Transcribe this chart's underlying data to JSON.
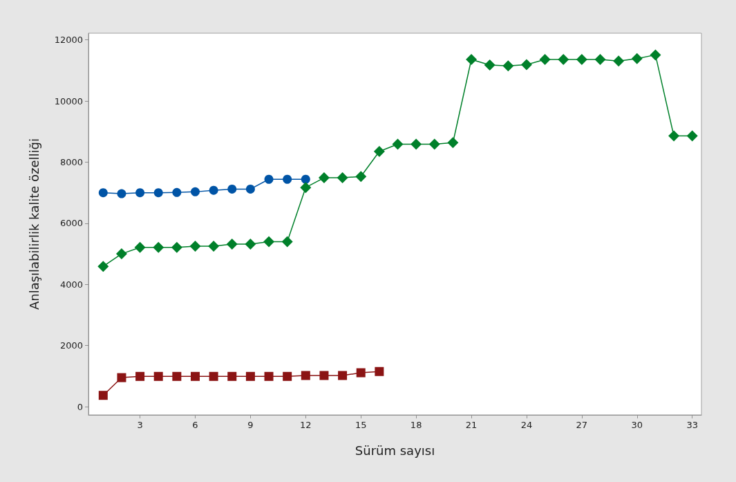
{
  "chart_data": {
    "type": "line",
    "xlabel": "Sürüm sayısı",
    "ylabel": "Anlaşılabilirlik kalite özelliği",
    "x": [
      1,
      2,
      3,
      4,
      5,
      6,
      7,
      8,
      9,
      10,
      11,
      12,
      13,
      14,
      15,
      16,
      17,
      18,
      19,
      20,
      21,
      22,
      23,
      24,
      25,
      26,
      27,
      28,
      29,
      30,
      31,
      32,
      33
    ],
    "xlim": [
      0.2,
      33.5
    ],
    "xticks": [
      3,
      6,
      9,
      12,
      15,
      18,
      21,
      24,
      27,
      30,
      33
    ],
    "ylim": [
      -270,
      12220
    ],
    "yticks": [
      0,
      2000,
      4000,
      6000,
      8000,
      10000,
      12000
    ],
    "grid": false,
    "line_style": "solid",
    "series": [
      {
        "color": "#0054a6",
        "marker": "circle",
        "x": [
          1,
          2,
          3,
          4,
          5,
          6,
          7,
          8,
          9,
          10,
          11,
          12
        ],
        "values": [
          7000,
          6970,
          7000,
          7000,
          7010,
          7030,
          7080,
          7120,
          7120,
          7440,
          7440,
          7440
        ]
      },
      {
        "color": "#00802a",
        "marker": "diamond",
        "values": [
          4590,
          5000,
          5210,
          5210,
          5210,
          5250,
          5250,
          5320,
          5320,
          5400,
          5400,
          7170,
          7490,
          7490,
          7530,
          8350,
          8590,
          8590,
          8590,
          8640,
          11360,
          11180,
          11150,
          11190,
          11360,
          11360,
          11360,
          11360,
          11310,
          11390,
          11510,
          8860,
          8860
        ]
      },
      {
        "color": "#8b1414",
        "marker": "square",
        "x": [
          1,
          2,
          3,
          4,
          5,
          6,
          7,
          8,
          9,
          10,
          11,
          12,
          13,
          14,
          15,
          16
        ],
        "values": [
          370,
          950,
          990,
          990,
          990,
          990,
          990,
          990,
          990,
          990,
          990,
          1020,
          1020,
          1020,
          1110,
          1150
        ]
      }
    ]
  }
}
